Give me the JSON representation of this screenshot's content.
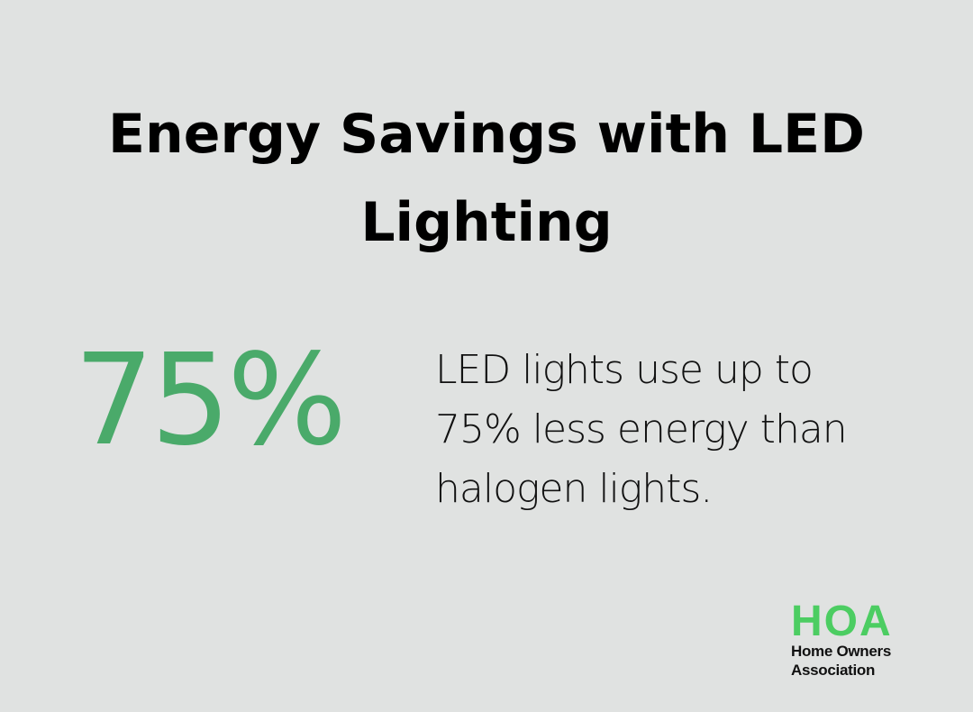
{
  "title": "Energy Savings with LED Lighting",
  "stat": {
    "value": "75%",
    "description": "LED lights use up to 75% less energy than halogen lights."
  },
  "logo": {
    "mark": "HOA",
    "line1": "Home Owners",
    "line2": "Association"
  },
  "colors": {
    "background": "#e0e2e1",
    "stat_green": "#4aaa6a",
    "logo_green": "#4ccd62",
    "text": "#000000"
  }
}
